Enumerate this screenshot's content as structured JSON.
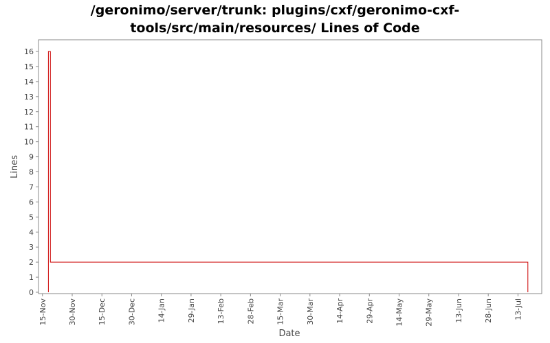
{
  "chart_data": {
    "type": "line",
    "title_lines": [
      "/geronimo/server/trunk: plugins/cxf/geronimo-cxf-",
      "tools/src/main/resources/ Lines of Code"
    ],
    "xlabel": "Date",
    "ylabel": "Lines",
    "ylim": [
      0,
      16
    ],
    "yticks": [
      0,
      1,
      2,
      3,
      4,
      5,
      6,
      7,
      8,
      9,
      10,
      11,
      12,
      13,
      14,
      15,
      16
    ],
    "x_tick_labels": [
      "15-Nov",
      "30-Nov",
      "15-Dec",
      "30-Dec",
      "14-Jan",
      "29-Jan",
      "13-Feb",
      "28-Feb",
      "15-Mar",
      "30-Mar",
      "14-Apr",
      "29-Apr",
      "14-May",
      "29-May",
      "13-Jun",
      "28-Jun",
      "13-Jul"
    ],
    "x_tick_days": [
      0,
      15,
      30,
      45,
      60,
      75,
      90,
      105,
      120,
      135,
      150,
      165,
      180,
      195,
      210,
      225,
      240
    ],
    "xlim_days": [
      -2,
      252
    ],
    "series": [
      {
        "name": "",
        "color": "#cc0000",
        "step": true,
        "points": [
          {
            "day": 3,
            "value": 0
          },
          {
            "day": 3,
            "value": 16
          },
          {
            "day": 4,
            "value": 16
          },
          {
            "day": 4,
            "value": 2
          },
          {
            "day": 245,
            "value": 2
          },
          {
            "day": 245,
            "value": 0
          }
        ]
      }
    ],
    "grid": false
  }
}
